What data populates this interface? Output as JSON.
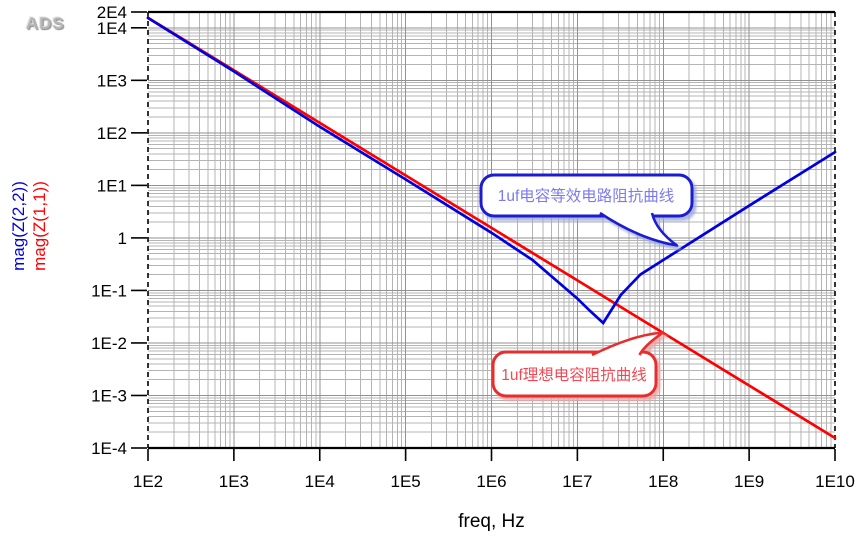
{
  "app": {
    "watermark": "ADS"
  },
  "chart_data": {
    "type": "line",
    "title": "",
    "x_axis": {
      "label": "freq, Hz",
      "scale": "log",
      "min": 100,
      "max": 10000000000,
      "ticks": [
        {
          "label": "1E2",
          "value": 100
        },
        {
          "label": "1E3",
          "value": 1000
        },
        {
          "label": "1E4",
          "value": 10000
        },
        {
          "label": "1E5",
          "value": 100000
        },
        {
          "label": "1E6",
          "value": 1000000
        },
        {
          "label": "1E7",
          "value": 10000000
        },
        {
          "label": "1E8",
          "value": 100000000
        },
        {
          "label": "1E9",
          "value": 1000000000
        },
        {
          "label": "1E10",
          "value": 10000000000
        }
      ]
    },
    "y_axis": {
      "label": "",
      "scale": "log",
      "min": 0.0001,
      "max": 20000,
      "ticks": [
        {
          "label": "2E4",
          "value": 20000
        },
        {
          "label": "1E4",
          "value": 10000
        },
        {
          "label": "1E3",
          "value": 1000
        },
        {
          "label": "1E2",
          "value": 100
        },
        {
          "label": "1E1",
          "value": 10
        },
        {
          "label": "1",
          "value": 1
        },
        {
          "label": "1E-1",
          "value": 0.1
        },
        {
          "label": "1E-2",
          "value": 0.01
        },
        {
          "label": "1E-3",
          "value": 0.001
        },
        {
          "label": "1E-4",
          "value": 0.0001
        }
      ]
    },
    "grid": true,
    "legend_position": "left-rotated",
    "series": [
      {
        "name": "mag(Z(2,2))",
        "color": "#0000e0",
        "points": [
          [
            100,
            15400
          ],
          [
            1000,
            1480
          ],
          [
            10000,
            131
          ],
          [
            100000,
            13
          ],
          [
            1000000,
            1.25
          ],
          [
            3000000,
            0.38
          ],
          [
            10000000,
            0.07
          ],
          [
            14000000,
            0.041
          ],
          [
            20000000,
            0.024
          ],
          [
            32000000,
            0.082
          ],
          [
            54000000,
            0.2
          ],
          [
            100000000,
            0.38
          ],
          [
            1000000000,
            4.1
          ],
          [
            10000000000,
            43
          ]
        ]
      },
      {
        "name": "mag(Z(1,1))",
        "color": "#ff0000",
        "points": [
          [
            100,
            15500
          ],
          [
            1000,
            1550
          ],
          [
            10000,
            155
          ],
          [
            100000,
            15.5
          ],
          [
            1000000,
            1.55
          ],
          [
            10000000,
            0.155
          ],
          [
            100000000,
            0.0155
          ],
          [
            1000000000,
            0.00155
          ],
          [
            10000000000,
            0.000155
          ]
        ]
      }
    ],
    "annotations": [
      {
        "text": "1uf电容等效电路阻抗曲线",
        "border_color": "#1b1bd0",
        "text_color": "#7b7bef"
      },
      {
        "text": "1uf理想电容阻抗曲线",
        "border_color": "#e62e2e",
        "text_color": "#ef4a55"
      }
    ]
  }
}
